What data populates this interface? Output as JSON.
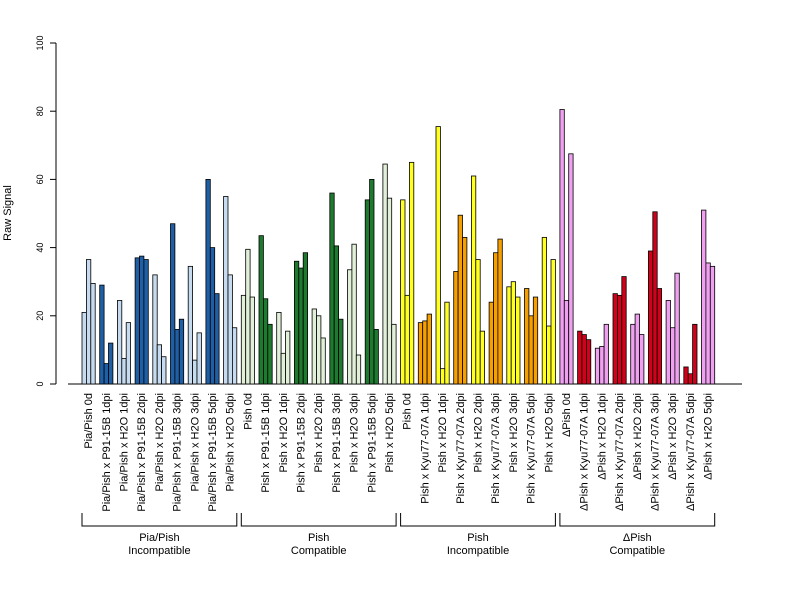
{
  "chart_data": {
    "type": "bar",
    "title": "",
    "xlabel": "",
    "ylabel": "Raw Signal",
    "ylim": [
      0,
      100
    ],
    "yticks": [
      0,
      20,
      40,
      60,
      80,
      100
    ],
    "grid": false,
    "legend": "none",
    "bars_per_category": 3,
    "categories": [
      {
        "label": "Pia/Pish 0d",
        "color": "#c6dbef",
        "values": [
          21,
          36.5,
          29.5
        ]
      },
      {
        "label": "Pia/Pish x P91-15B 1dpi",
        "color": "#1f5fa6",
        "values": [
          29,
          6,
          12
        ]
      },
      {
        "label": "Pia/Pish x H2O 1dpi",
        "color": "#c6dbef",
        "values": [
          24.5,
          7.5,
          18
        ]
      },
      {
        "label": "Pia/Pish x P91-15B 2dpi",
        "color": "#1f5fa6",
        "values": [
          37,
          37.5,
          36.5
        ]
      },
      {
        "label": "Pia/Pish x H2O 2dpi",
        "color": "#c6dbef",
        "values": [
          32,
          11.5,
          8
        ]
      },
      {
        "label": "Pia/Pish x P91-15B 3dpi",
        "color": "#1f5fa6",
        "values": [
          47,
          16,
          19
        ]
      },
      {
        "label": "Pia/Pish x H2O 3dpi",
        "color": "#c6dbef",
        "values": [
          34.5,
          7,
          15
        ]
      },
      {
        "label": "Pia/Pish x P91-15B 5dpi",
        "color": "#1f5fa6",
        "values": [
          60,
          40,
          26.5
        ]
      },
      {
        "label": "Pia/Pish x H2O 5dpi",
        "color": "#c6dbef",
        "values": [
          55,
          32,
          16.5
        ]
      },
      {
        "label": "Pish 0d",
        "color": "#e2f0d9",
        "values": [
          26,
          39.5,
          25.5
        ]
      },
      {
        "label": "Pish x P91-15B 1dpi",
        "color": "#1e7a2e",
        "values": [
          43.5,
          25,
          17.5
        ]
      },
      {
        "label": "Pish x H2O 1dpi",
        "color": "#e2f0d9",
        "values": [
          21,
          9,
          15.5
        ]
      },
      {
        "label": "Pish x P91-15B 2dpi",
        "color": "#1e7a2e",
        "values": [
          36,
          34,
          38.5
        ]
      },
      {
        "label": "Pish x H2O 2dpi",
        "color": "#e2f0d9",
        "values": [
          22,
          20,
          13.5
        ]
      },
      {
        "label": "Pish x P91-15B 3dpi",
        "color": "#1e7a2e",
        "values": [
          56,
          40.5,
          19
        ]
      },
      {
        "label": "Pish x H2O 3dpi",
        "color": "#e2f0d9",
        "values": [
          33.5,
          41,
          8.5
        ]
      },
      {
        "label": "Pish x P91-15B 5dpi",
        "color": "#1e7a2e",
        "values": [
          54,
          60,
          16
        ]
      },
      {
        "label": "Pish x H2O 5dpi",
        "color": "#e2f0d9",
        "values": [
          64.5,
          54.5,
          17.5
        ]
      },
      {
        "label": "Pish 0d",
        "color": "#ffff22",
        "values": [
          54,
          26,
          65
        ]
      },
      {
        "label": "Pish x Kyu77-07A 1dpi",
        "color": "#f5a000",
        "values": [
          18,
          18.5,
          20.5
        ]
      },
      {
        "label": "Pish x H2O 1dpi",
        "color": "#ffff22",
        "values": [
          75.5,
          4.5,
          24
        ]
      },
      {
        "label": "Pish x Kyu77-07A 2dpi",
        "color": "#f5a000",
        "values": [
          33,
          49.5,
          43
        ]
      },
      {
        "label": "Pish x H2O 2dpi",
        "color": "#ffff22",
        "values": [
          61,
          36.5,
          15.5
        ]
      },
      {
        "label": "Pish x Kyu77-07A 3dpi",
        "color": "#f5a000",
        "values": [
          24,
          38.5,
          42.5
        ]
      },
      {
        "label": "Pish x H2O 3dpi",
        "color": "#ffff22",
        "values": [
          28.5,
          30,
          25.5
        ]
      },
      {
        "label": "Pish x Kyu77-07A 5dpi",
        "color": "#f5a000",
        "values": [
          28,
          20,
          25.5
        ]
      },
      {
        "label": "Pish x H2O 5dpi",
        "color": "#ffff22",
        "values": [
          43,
          17,
          36.5
        ]
      },
      {
        "label": "ΔPish 0d",
        "color": "#f0a0f0",
        "values": [
          80.5,
          24.5,
          67.5
        ]
      },
      {
        "label": "ΔPish x Kyu77-07A 1dpi",
        "color": "#d0021b",
        "values": [
          15.5,
          14.5,
          13
        ]
      },
      {
        "label": "ΔPish x H2O 1dpi",
        "color": "#f0a0f0",
        "values": [
          10.5,
          11,
          17.5
        ]
      },
      {
        "label": "ΔPish x Kyu77-07A 2dpi",
        "color": "#d0021b",
        "values": [
          26.5,
          26,
          31.5
        ]
      },
      {
        "label": "ΔPish x H2O 2dpi",
        "color": "#f0a0f0",
        "values": [
          17.5,
          20.5,
          14.5
        ]
      },
      {
        "label": "ΔPish x Kyu77-07A 3dpi",
        "color": "#d0021b",
        "values": [
          39,
          50.5,
          28
        ]
      },
      {
        "label": "ΔPish x H2O 3dpi",
        "color": "#f0a0f0",
        "values": [
          24.5,
          16.5,
          32.5
        ]
      },
      {
        "label": "ΔPish x Kyu77-07A 5dpi",
        "color": "#d0021b",
        "values": [
          5,
          3,
          17.5
        ]
      },
      {
        "label": "ΔPish x H2O 5dpi",
        "color": "#f0a0f0",
        "values": [
          51,
          35.5,
          34.5
        ]
      }
    ],
    "groups": [
      {
        "line1": "Pia/Pish",
        "line2": "Incompatible",
        "first": 0,
        "last": 8
      },
      {
        "line1": "Pish",
        "line2": "Compatible",
        "first": 9,
        "last": 17
      },
      {
        "line1": "Pish",
        "line2": "Incompatible",
        "first": 18,
        "last": 26
      },
      {
        "line1": "ΔPish",
        "line2": "Compatible",
        "first": 27,
        "last": 35
      }
    ]
  }
}
